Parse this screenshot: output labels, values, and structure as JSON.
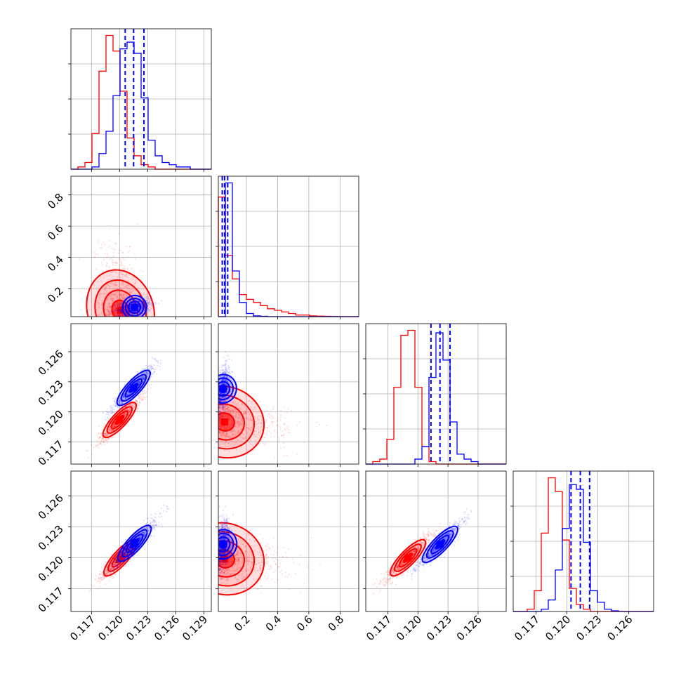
{
  "chart_data": {
    "type": "corner",
    "grid": true,
    "colors": {
      "red": "#ff0000",
      "blue": "#0000ff"
    },
    "parameters": [
      {
        "range": [
          0.1148,
          0.1298
        ],
        "ticks": [
          0.117,
          0.12,
          0.123,
          0.126,
          0.129
        ],
        "tick_labels": [
          "0.117",
          "0.120",
          "0.123",
          "0.126",
          "0.129"
        ]
      },
      {
        "range": [
          0.02,
          0.92
        ],
        "ticks": [
          0.2,
          0.4,
          0.6,
          0.8
        ],
        "tick_labels": [
          "0.2",
          "0.4",
          "0.6",
          "0.8"
        ]
      },
      {
        "range": [
          0.1148,
          0.1288
        ],
        "ticks": [
          0.117,
          0.12,
          0.123,
          0.126
        ],
        "tick_labels": [
          "0.117",
          "0.120",
          "0.123",
          "0.126"
        ]
      },
      {
        "range": [
          0.1148,
          0.1284
        ],
        "ticks": [
          0.117,
          0.12,
          0.123,
          0.126
        ],
        "tick_labels": [
          "0.117",
          "0.120",
          "0.123",
          "0.126"
        ]
      }
    ],
    "marginals": [
      {
        "bins": 20,
        "series": [
          {
            "color": "#ff0000",
            "density": [
              0,
              1,
              3,
              16,
              44,
              60,
              53,
              35,
              14,
              6,
              2,
              1,
              0,
              0,
              0,
              0,
              0,
              0,
              0,
              0
            ]
          },
          {
            "color": "#0000ff",
            "density": [
              0,
              0,
              0,
              1,
              7,
              17,
              33,
              54,
              57,
              52,
              32,
              13,
              6,
              3,
              2,
              1,
              1,
              0,
              0,
              0
            ]
          }
        ],
        "quantiles": [
          0.1206,
          0.1215,
          0.1226
        ]
      },
      {
        "bins": 20,
        "series": [
          {
            "color": "#ff0000",
            "density": [
              76,
              39,
              24,
              14,
              11,
              9,
              7,
              5,
              4,
              3,
              2,
              1,
              1,
              0.5,
              0.3,
              0.2,
              0.1,
              0,
              0,
              0
            ]
          },
          {
            "color": "#0000ff",
            "density": [
              0,
              85,
              29,
              9,
              2,
              0.5,
              0.2,
              0,
              0,
              0,
              0,
              0,
              0,
              0,
              0,
              0,
              0,
              0,
              0,
              0
            ]
          }
        ],
        "quantiles": [
          0.045,
          0.06,
          0.08
        ]
      },
      {
        "bins": 20,
        "series": [
          {
            "color": "#ff0000",
            "density": [
              0,
              1,
              2,
              10,
              31,
              52,
              54,
              31,
              7,
              1,
              0,
              0,
              0,
              0,
              0,
              0,
              0,
              0,
              0,
              0
            ]
          },
          {
            "color": "#0000ff",
            "density": [
              0,
              0,
              0,
              0,
              0,
              0,
              0,
              2,
              7,
              35,
              53,
              42,
              17,
              4,
              2,
              1,
              0,
              0,
              0,
              0
            ]
          }
        ],
        "quantiles": [
          0.1213,
          0.1222,
          0.1232
        ]
      },
      {
        "bins": 20,
        "series": [
          {
            "color": "#ff0000",
            "density": [
              0,
              0,
              1,
              9,
              34,
              58,
              52,
              31,
              10,
              3,
              1,
              0,
              0,
              0,
              0,
              0,
              0,
              0,
              0,
              0
            ]
          },
          {
            "color": "#0000ff",
            "density": [
              0,
              0,
              0,
              0,
              1,
              5,
              18,
              36,
              55,
              53,
              30,
              9,
              4,
              1,
              0.3,
              0,
              0,
              0,
              0,
              0
            ]
          }
        ],
        "quantiles": [
          0.1204,
          0.1213,
          0.1222
        ]
      }
    ],
    "pairs": [
      {
        "row": 1,
        "col": 0,
        "series": [
          {
            "color": "#ff0000",
            "center": [
              0.1201,
              0.06
            ],
            "spread": [
              0.0011,
              0.2
            ],
            "corr": -0.3
          },
          {
            "color": "#0000ff",
            "center": [
              0.1216,
              0.08
            ],
            "spread": [
              0.0009,
              0.03
            ],
            "corr": 0.3
          }
        ]
      },
      {
        "row": 2,
        "col": 0,
        "series": [
          {
            "color": "#ff0000",
            "center": [
              0.12,
              0.1192
            ],
            "spread": [
              0.0011,
              0.0011
            ],
            "corr": 0.93
          },
          {
            "color": "#0000ff",
            "center": [
              0.1215,
              0.1224
            ],
            "spread": [
              0.0011,
              0.0011
            ],
            "corr": 0.93
          }
        ]
      },
      {
        "row": 2,
        "col": 1,
        "series": [
          {
            "color": "#ff0000",
            "center": [
              0.06,
              0.119
            ],
            "spread": [
              0.2,
              0.0011
            ],
            "corr": -0.2
          },
          {
            "color": "#0000ff",
            "center": [
              0.05,
              0.1223
            ],
            "spread": [
              0.02,
              0.0011
            ],
            "corr": 0.3
          }
        ]
      },
      {
        "row": 3,
        "col": 0,
        "series": [
          {
            "color": "#ff0000",
            "center": [
              0.1201,
              0.12
            ],
            "spread": [
              0.0011,
              0.0011
            ],
            "corr": 0.93
          },
          {
            "color": "#0000ff",
            "center": [
              0.1216,
              0.1214
            ],
            "spread": [
              0.0011,
              0.0011
            ],
            "corr": 0.93
          }
        ]
      },
      {
        "row": 3,
        "col": 1,
        "series": [
          {
            "color": "#ff0000",
            "center": [
              0.06,
              0.1199
            ],
            "spread": [
              0.2,
              0.0011
            ],
            "corr": -0.2
          },
          {
            "color": "#0000ff",
            "center": [
              0.05,
              0.1213
            ],
            "spread": [
              0.02,
              0.0011
            ],
            "corr": 0.3
          }
        ]
      },
      {
        "row": 3,
        "col": 2,
        "series": [
          {
            "color": "#ff0000",
            "center": [
              0.119,
              0.12
            ],
            "spread": [
              0.0011,
              0.0011
            ],
            "corr": 0.93
          },
          {
            "color": "#0000ff",
            "center": [
              0.1222,
              0.1213
            ],
            "spread": [
              0.0011,
              0.0011
            ],
            "corr": 0.93
          }
        ]
      }
    ]
  }
}
